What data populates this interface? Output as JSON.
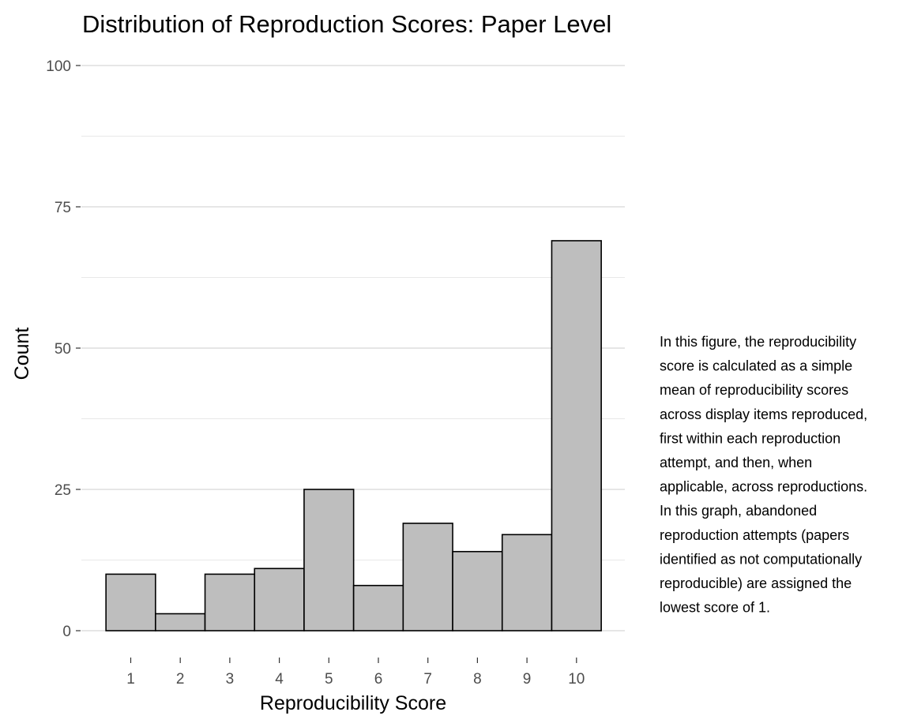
{
  "chart_data": {
    "type": "bar",
    "title": "Distribution of Reproduction Scores: Paper Level",
    "xlabel": "Reproducibility Score",
    "ylabel": "Count",
    "categories": [
      "1",
      "2",
      "3",
      "4",
      "5",
      "6",
      "7",
      "8",
      "9",
      "10"
    ],
    "values": [
      10,
      3,
      10,
      11,
      25,
      8,
      19,
      14,
      17,
      69
    ],
    "ylim": [
      0,
      100
    ],
    "yticks": [
      0,
      25,
      50,
      75,
      100
    ],
    "grid": true,
    "legend": "none",
    "annotation_lines": [
      "In this figure, the reproducibility",
      "score is calculated as a simple",
      "mean of reproducibility scores",
      "across display items reproduced,",
      "first within each reproduction",
      "attempt, and then, when",
      "applicable, across reproductions.",
      "In this graph, abandoned",
      "reproduction attempts (papers",
      "identified as not computationally",
      "reproducible) are assigned the",
      "lowest score of 1."
    ]
  },
  "colors": {
    "bar_fill": "#bebebe",
    "bar_stroke": "#000000",
    "grid_major": "#cccccc",
    "grid_minor": "#e0e0e0",
    "tick_text": "#4d4d4d",
    "tick_mark": "#333333"
  }
}
